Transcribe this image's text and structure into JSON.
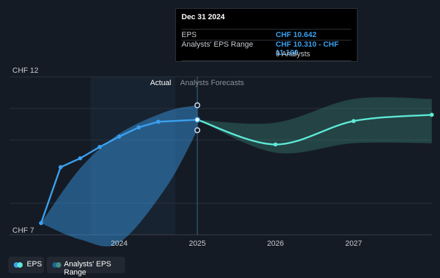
{
  "chart_data": {
    "type": "line",
    "y_axis": {
      "top_label": "CHF 12",
      "bottom_label": "CHF 7",
      "ylim": [
        7,
        12
      ]
    },
    "x_ticks": [
      {
        "label": "2024",
        "x": 2024.0
      },
      {
        "label": "2025",
        "x": 2025.0
      },
      {
        "label": "2026",
        "x": 2026.0
      },
      {
        "label": "2027",
        "x": 2027.0
      }
    ],
    "xlim": [
      2022.8,
      2028.0
    ],
    "regions": {
      "actual_label": "Actual",
      "forecast_label": "Analysts Forecasts"
    },
    "series": [
      {
        "name": "EPS",
        "color": "#3aa0f0",
        "points": [
          {
            "x": 2023.0,
            "y": 7.37
          },
          {
            "x": 2023.25,
            "y": 9.14
          },
          {
            "x": 2023.5,
            "y": 9.42
          },
          {
            "x": 2023.75,
            "y": 9.78
          },
          {
            "x": 2024.0,
            "y": 10.11
          },
          {
            "x": 2024.25,
            "y": 10.4
          },
          {
            "x": 2024.5,
            "y": 10.58
          },
          {
            "x": 2025.0,
            "y": 10.642
          }
        ]
      },
      {
        "name": "EPS Forecast",
        "color": "#5ee8d6",
        "points": [
          {
            "x": 2025.0,
            "y": 10.642
          },
          {
            "x": 2026.0,
            "y": 9.86
          },
          {
            "x": 2027.0,
            "y": 10.6
          },
          {
            "x": 2028.0,
            "y": 10.8
          }
        ]
      }
    ],
    "ranges": [
      {
        "name": "Analysts' EPS Range",
        "color": "#3aa0f0",
        "low": [
          {
            "x": 2023.0,
            "y": 7.37
          },
          {
            "x": 2023.5,
            "y": 6.85
          },
          {
            "x": 2024.0,
            "y": 6.75
          },
          {
            "x": 2024.6,
            "y": 8.5
          },
          {
            "x": 2025.0,
            "y": 10.31
          }
        ],
        "high": [
          {
            "x": 2023.0,
            "y": 7.37
          },
          {
            "x": 2023.5,
            "y": 9.1
          },
          {
            "x": 2024.0,
            "y": 10.2
          },
          {
            "x": 2024.6,
            "y": 10.9
          },
          {
            "x": 2025.0,
            "y": 11.1
          }
        ]
      },
      {
        "name": "Analysts' EPS Range",
        "color": "#3f8f80",
        "low": [
          {
            "x": 2025.0,
            "y": 10.642
          },
          {
            "x": 2026.0,
            "y": 9.6
          },
          {
            "x": 2027.0,
            "y": 9.9
          },
          {
            "x": 2028.0,
            "y": 9.9
          }
        ],
        "high": [
          {
            "x": 2025.0,
            "y": 10.642
          },
          {
            "x": 2026.0,
            "y": 10.55
          },
          {
            "x": 2027.0,
            "y": 11.3
          },
          {
            "x": 2028.0,
            "y": 11.3
          }
        ]
      }
    ],
    "highlight_x": 2025.0,
    "tooltip": {
      "date": "Dec 31 2024",
      "eps_label": "EPS",
      "eps_value": "CHF 10.642",
      "range_label": "Analysts' EPS Range",
      "range_value": "CHF 10.310 - CHF 11.100",
      "analysts": "9 Analysts"
    },
    "legend": [
      {
        "label": "EPS",
        "colors": [
          "#3aa0f0",
          "#5ee8d6"
        ]
      },
      {
        "label": "Analysts' EPS Range",
        "colors": [
          "#1d5f9a",
          "#3f8f80"
        ]
      }
    ],
    "grid": true
  }
}
